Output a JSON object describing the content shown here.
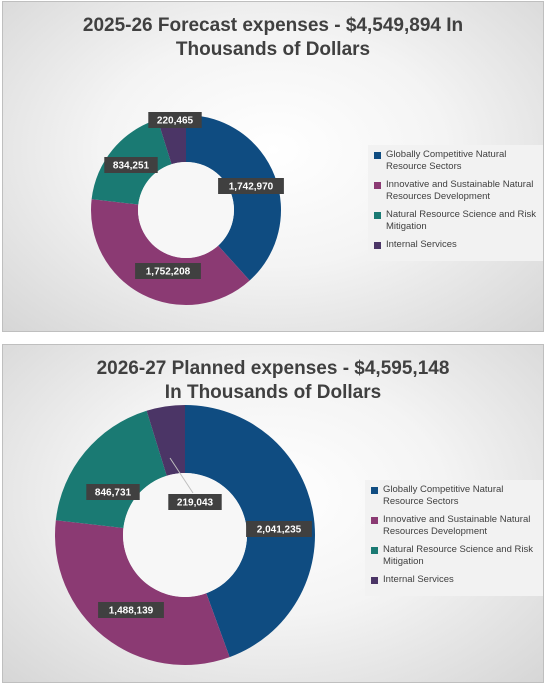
{
  "chart_data": [
    {
      "type": "pie",
      "title_lines": [
        "2025-26 Forecast expenses - $4,549,894 In",
        "Thousands of Dollars"
      ],
      "categories": [
        "Globally Competitive Natural Resource Sectors",
        "Innovative and Sustainable Natural Resources Development",
        "Natural Resource Science and Risk Mitigation",
        "Internal Services"
      ],
      "values": [
        1742970,
        1752208,
        834251,
        220465
      ],
      "value_labels": [
        "1,742,970",
        "1,752,208",
        "834,251",
        "220,465"
      ],
      "legend": "right",
      "colors": [
        "#0f4c81",
        "#8b3a73",
        "#1a7a73",
        "#4b3566"
      ]
    },
    {
      "type": "pie",
      "title_lines": [
        "2026-27 Planned expenses - $4,595,148",
        "In Thousands of Dollars"
      ],
      "categories": [
        "Globally Competitive Natural Resource Sectors",
        "Innovative and Sustainable Natural Resources Development",
        "Natural Resource Science and Risk Mitigation",
        "Internal Services"
      ],
      "values": [
        2041235,
        1488139,
        846731,
        219043
      ],
      "value_labels": [
        "2,041,235",
        "1,488,139",
        "846,731",
        "219,043"
      ],
      "legend": "right",
      "colors": [
        "#0f4c81",
        "#8b3a73",
        "#1a7a73",
        "#4b3566"
      ]
    }
  ]
}
